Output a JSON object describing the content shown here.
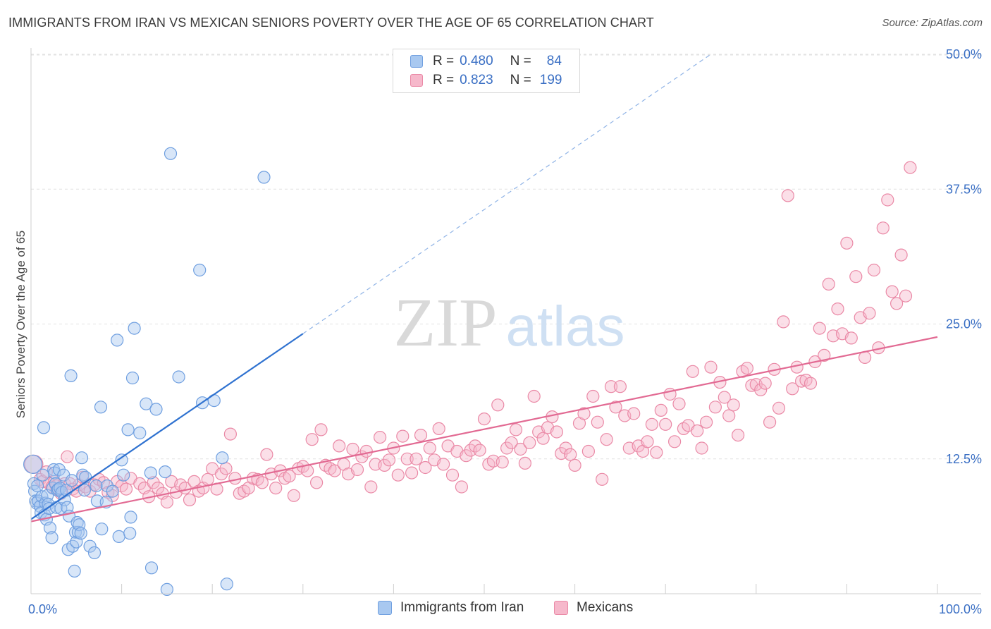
{
  "header": {
    "title": "IMMIGRANTS FROM IRAN VS MEXICAN SENIORS POVERTY OVER THE AGE OF 65 CORRELATION CHART",
    "source": "Source: ZipAtlas.com"
  },
  "watermark": {
    "zip": "ZIP",
    "atlas": "atlas"
  },
  "legend": {
    "rows": [
      {
        "r_label": "R =",
        "r_value": "0.480",
        "n_label": "N =",
        "n_value": "84",
        "color": "#a8c8f0",
        "stroke": "#6f9fe0"
      },
      {
        "r_label": "R =",
        "r_value": "0.823",
        "n_label": "N =",
        "n_value": "199",
        "color": "#f6b8cb",
        "stroke": "#ea89a6"
      }
    ]
  },
  "bottom_legend": [
    {
      "label": "Immigrants from Iran",
      "color": "#a8c8f0",
      "stroke": "#6f9fe0"
    },
    {
      "label": "Mexicans",
      "color": "#f6b8cb",
      "stroke": "#ea89a6"
    }
  ],
  "chart_data": {
    "type": "scatter",
    "title": "IMMIGRANTS FROM IRAN VS MEXICAN SENIORS POVERTY OVER THE AGE OF 65 CORRELATION CHART",
    "xlabel": "",
    "ylabel": "Seniors Poverty Over the Age of 65",
    "xlim": [
      0,
      100
    ],
    "ylim": [
      0,
      52
    ],
    "x_tick_labels": [
      "0.0%",
      "100.0%"
    ],
    "y_ticks": [
      12.5,
      25.0,
      37.5,
      50.0
    ],
    "y_tick_labels": [
      "12.5%",
      "25.0%",
      "37.5%",
      "50.0%"
    ],
    "grid": "horizontal dashed",
    "colors": {
      "iran": "#5b8fd6",
      "mexicans": "#e56f95",
      "iran_fill": "#a8c8f0",
      "mexicans_fill": "#f6b8cb",
      "tick_label": "#3a6fc4"
    },
    "series": [
      {
        "name": "Immigrants from Iran",
        "trend": {
          "x0": 0.0,
          "y0": 6.9,
          "x1": 30.0,
          "y1": 24.1,
          "dashed_to_x": 75.0,
          "dashed_to_y": 50.0
        },
        "points": [
          [
            0.2,
            12.0
          ],
          [
            0.3,
            10.2
          ],
          [
            0.4,
            9.5
          ],
          [
            0.5,
            8.6
          ],
          [
            0.6,
            8.4
          ],
          [
            0.7,
            10.0
          ],
          [
            0.8,
            8.6
          ],
          [
            1.0,
            8.1
          ],
          [
            1.1,
            7.5
          ],
          [
            1.2,
            9.0
          ],
          [
            1.3,
            11.0
          ],
          [
            1.4,
            15.4
          ],
          [
            1.5,
            7.3
          ],
          [
            1.6,
            8.4
          ],
          [
            1.7,
            6.9
          ],
          [
            1.8,
            9.1
          ],
          [
            1.9,
            8.3
          ],
          [
            2.0,
            7.9
          ],
          [
            2.1,
            6.1
          ],
          [
            2.3,
            5.2
          ],
          [
            2.4,
            9.8
          ],
          [
            2.5,
            11.5
          ],
          [
            2.6,
            11.2
          ],
          [
            2.7,
            10.2
          ],
          [
            2.8,
            8.0
          ],
          [
            2.9,
            9.6
          ],
          [
            3.0,
            9.7
          ],
          [
            3.1,
            11.5
          ],
          [
            3.2,
            9.8
          ],
          [
            3.3,
            7.9
          ],
          [
            3.4,
            9.4
          ],
          [
            3.6,
            11.0
          ],
          [
            3.7,
            8.7
          ],
          [
            3.9,
            9.6
          ],
          [
            4.0,
            8.0
          ],
          [
            4.1,
            4.1
          ],
          [
            4.2,
            7.2
          ],
          [
            4.4,
            20.2
          ],
          [
            4.5,
            10.5
          ],
          [
            4.6,
            4.4
          ],
          [
            4.8,
            2.1
          ],
          [
            4.9,
            5.7
          ],
          [
            5.0,
            4.8
          ],
          [
            5.1,
            6.6
          ],
          [
            5.2,
            5.7
          ],
          [
            5.3,
            6.4
          ],
          [
            5.5,
            5.6
          ],
          [
            5.6,
            12.6
          ],
          [
            5.7,
            11.0
          ],
          [
            5.9,
            9.6
          ],
          [
            6.0,
            10.8
          ],
          [
            6.5,
            4.4
          ],
          [
            7.0,
            3.8
          ],
          [
            7.2,
            10.0
          ],
          [
            7.3,
            8.6
          ],
          [
            7.7,
            17.3
          ],
          [
            7.8,
            6.0
          ],
          [
            8.3,
            8.5
          ],
          [
            8.4,
            10.0
          ],
          [
            9.0,
            9.5
          ],
          [
            9.5,
            23.5
          ],
          [
            9.7,
            5.3
          ],
          [
            10.0,
            12.4
          ],
          [
            10.2,
            11.0
          ],
          [
            10.7,
            15.2
          ],
          [
            10.9,
            5.6
          ],
          [
            11.0,
            7.1
          ],
          [
            11.2,
            20.0
          ],
          [
            11.4,
            24.6
          ],
          [
            12.0,
            14.9
          ],
          [
            12.7,
            17.6
          ],
          [
            13.2,
            11.2
          ],
          [
            13.3,
            2.4
          ],
          [
            13.8,
            17.1
          ],
          [
            14.8,
            11.3
          ],
          [
            15.0,
            0.4
          ],
          [
            15.4,
            40.8
          ],
          [
            16.3,
            20.1
          ],
          [
            18.6,
            30.0
          ],
          [
            18.9,
            17.7
          ],
          [
            20.2,
            17.9
          ],
          [
            21.1,
            12.6
          ],
          [
            21.6,
            0.9
          ],
          [
            25.7,
            38.6
          ]
        ]
      },
      {
        "name": "Mexicans",
        "trend": {
          "x0": 0.0,
          "y0": 6.7,
          "x1": 100.0,
          "y1": 23.8
        },
        "points": [
          [
            0.3,
            12.0
          ],
          [
            1.0,
            10.6
          ],
          [
            1.3,
            10.4
          ],
          [
            1.7,
            11.3
          ],
          [
            2.0,
            10.2
          ],
          [
            2.3,
            9.9
          ],
          [
            2.6,
            10.4
          ],
          [
            2.8,
            10.0
          ],
          [
            3.0,
            9.6
          ],
          [
            3.3,
            9.3
          ],
          [
            3.7,
            10.2
          ],
          [
            4.0,
            12.7
          ],
          [
            4.3,
            10.2
          ],
          [
            4.6,
            9.7
          ],
          [
            5.0,
            9.5
          ],
          [
            5.3,
            10.1
          ],
          [
            5.7,
            10.8
          ],
          [
            6.0,
            9.9
          ],
          [
            6.5,
            9.5
          ],
          [
            7.0,
            10.1
          ],
          [
            7.5,
            10.6
          ],
          [
            8.0,
            10.3
          ],
          [
            8.5,
            9.4
          ],
          [
            9.0,
            9.1
          ],
          [
            9.5,
            10.4
          ],
          [
            10.0,
            10.0
          ],
          [
            10.5,
            9.7
          ],
          [
            11.0,
            10.7
          ],
          [
            12.0,
            10.2
          ],
          [
            12.5,
            9.8
          ],
          [
            13.0,
            9.0
          ],
          [
            13.5,
            10.3
          ],
          [
            14.0,
            9.8
          ],
          [
            14.5,
            9.3
          ],
          [
            15.0,
            8.5
          ],
          [
            15.5,
            10.4
          ],
          [
            16.0,
            9.4
          ],
          [
            16.5,
            10.1
          ],
          [
            17.0,
            9.8
          ],
          [
            17.5,
            8.7
          ],
          [
            18.0,
            10.4
          ],
          [
            18.5,
            9.5
          ],
          [
            19.0,
            9.8
          ],
          [
            19.5,
            10.6
          ],
          [
            20.0,
            11.6
          ],
          [
            20.5,
            9.7
          ],
          [
            21.0,
            11.1
          ],
          [
            21.5,
            11.6
          ],
          [
            22.0,
            14.8
          ],
          [
            22.5,
            10.7
          ],
          [
            23.0,
            9.3
          ],
          [
            23.5,
            9.5
          ],
          [
            24.0,
            9.8
          ],
          [
            24.5,
            10.7
          ],
          [
            25.0,
            10.6
          ],
          [
            25.5,
            10.3
          ],
          [
            26.0,
            12.9
          ],
          [
            26.5,
            11.1
          ],
          [
            27.0,
            9.8
          ],
          [
            27.5,
            11.4
          ],
          [
            28.0,
            10.7
          ],
          [
            28.5,
            10.9
          ],
          [
            29.0,
            9.1
          ],
          [
            29.5,
            11.6
          ],
          [
            30.0,
            11.8
          ],
          [
            30.5,
            11.4
          ],
          [
            31.0,
            14.3
          ],
          [
            31.5,
            10.3
          ],
          [
            32.0,
            15.2
          ],
          [
            32.5,
            11.9
          ],
          [
            33.0,
            11.6
          ],
          [
            33.5,
            11.4
          ],
          [
            34.0,
            13.7
          ],
          [
            34.5,
            12.0
          ],
          [
            35.0,
            11.1
          ],
          [
            35.5,
            13.4
          ],
          [
            36.0,
            11.5
          ],
          [
            36.5,
            12.7
          ],
          [
            37.0,
            13.2
          ],
          [
            37.5,
            9.9
          ],
          [
            38.0,
            12.0
          ],
          [
            38.5,
            14.5
          ],
          [
            39.0,
            11.9
          ],
          [
            39.5,
            12.4
          ],
          [
            40.0,
            13.5
          ],
          [
            40.5,
            11.0
          ],
          [
            41.0,
            14.6
          ],
          [
            41.5,
            12.5
          ],
          [
            42.0,
            11.2
          ],
          [
            42.5,
            12.5
          ],
          [
            43.0,
            14.7
          ],
          [
            43.5,
            11.7
          ],
          [
            44.0,
            13.5
          ],
          [
            44.5,
            12.4
          ],
          [
            45.0,
            15.3
          ],
          [
            45.5,
            12.0
          ],
          [
            46.0,
            13.7
          ],
          [
            46.5,
            11.0
          ],
          [
            47.0,
            13.2
          ],
          [
            47.5,
            9.9
          ],
          [
            48.0,
            12.8
          ],
          [
            48.5,
            13.3
          ],
          [
            49.0,
            13.7
          ],
          [
            49.5,
            13.3
          ],
          [
            50.0,
            16.2
          ],
          [
            50.5,
            12.0
          ],
          [
            51.0,
            12.3
          ],
          [
            51.5,
            17.5
          ],
          [
            52.0,
            12.2
          ],
          [
            52.5,
            13.5
          ],
          [
            53.0,
            14.0
          ],
          [
            53.5,
            15.2
          ],
          [
            54.0,
            13.4
          ],
          [
            54.5,
            12.1
          ],
          [
            55.0,
            14.0
          ],
          [
            55.5,
            18.3
          ],
          [
            56.0,
            15.0
          ],
          [
            56.5,
            14.4
          ],
          [
            57.0,
            15.4
          ],
          [
            57.5,
            16.4
          ],
          [
            58.0,
            15.0
          ],
          [
            58.5,
            13.0
          ],
          [
            59.0,
            13.5
          ],
          [
            59.5,
            12.9
          ],
          [
            60.0,
            11.9
          ],
          [
            60.5,
            15.8
          ],
          [
            61.0,
            16.7
          ],
          [
            61.5,
            13.2
          ],
          [
            62.0,
            18.3
          ],
          [
            62.5,
            15.9
          ],
          [
            63.0,
            10.6
          ],
          [
            63.5,
            14.3
          ],
          [
            64.0,
            19.2
          ],
          [
            64.5,
            17.3
          ],
          [
            65.0,
            19.2
          ],
          [
            65.5,
            16.5
          ],
          [
            66.0,
            13.5
          ],
          [
            66.5,
            16.7
          ],
          [
            67.0,
            13.7
          ],
          [
            67.5,
            13.2
          ],
          [
            68.0,
            14.1
          ],
          [
            68.5,
            15.7
          ],
          [
            69.0,
            13.1
          ],
          [
            69.5,
            17.0
          ],
          [
            70.0,
            15.7
          ],
          [
            70.5,
            18.5
          ],
          [
            71.0,
            14.1
          ],
          [
            71.5,
            17.6
          ],
          [
            72.0,
            15.3
          ],
          [
            72.5,
            15.6
          ],
          [
            73.0,
            20.6
          ],
          [
            73.5,
            15.1
          ],
          [
            74.0,
            13.5
          ],
          [
            74.5,
            15.9
          ],
          [
            75.0,
            21.0
          ],
          [
            75.5,
            17.3
          ],
          [
            76.0,
            19.6
          ],
          [
            76.5,
            18.2
          ],
          [
            77.0,
            16.5
          ],
          [
            77.5,
            17.5
          ],
          [
            78.0,
            14.7
          ],
          [
            78.5,
            20.6
          ],
          [
            79.0,
            20.9
          ],
          [
            79.5,
            19.3
          ],
          [
            80.0,
            19.4
          ],
          [
            80.5,
            18.9
          ],
          [
            81.0,
            19.5
          ],
          [
            81.5,
            15.9
          ],
          [
            82.0,
            20.8
          ],
          [
            82.5,
            17.2
          ],
          [
            83.0,
            25.2
          ],
          [
            83.5,
            36.9
          ],
          [
            84.0,
            19.0
          ],
          [
            84.5,
            21.0
          ],
          [
            85.0,
            19.7
          ],
          [
            85.5,
            19.8
          ],
          [
            86.0,
            19.5
          ],
          [
            86.5,
            21.5
          ],
          [
            87.0,
            24.6
          ],
          [
            87.5,
            22.1
          ],
          [
            88.0,
            28.7
          ],
          [
            88.5,
            23.9
          ],
          [
            89.0,
            26.4
          ],
          [
            89.5,
            24.1
          ],
          [
            90.0,
            32.5
          ],
          [
            90.5,
            23.7
          ],
          [
            91.0,
            29.4
          ],
          [
            91.5,
            25.6
          ],
          [
            92.0,
            21.9
          ],
          [
            92.5,
            26.0
          ],
          [
            93.0,
            30.0
          ],
          [
            93.5,
            22.8
          ],
          [
            94.0,
            33.9
          ],
          [
            94.5,
            36.5
          ],
          [
            95.0,
            28.0
          ],
          [
            95.5,
            26.9
          ],
          [
            96.0,
            31.4
          ],
          [
            96.5,
            27.6
          ],
          [
            97.0,
            39.5
          ]
        ]
      }
    ]
  }
}
